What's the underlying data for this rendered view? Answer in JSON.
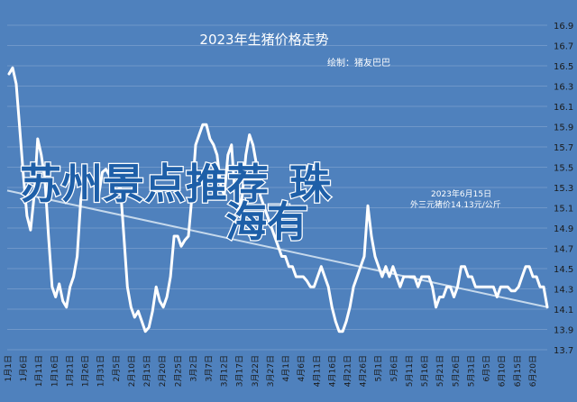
{
  "chart_data": {
    "type": "line",
    "title": "2023年生猪价格走势",
    "author": "绘制：猪友巴巴",
    "ylim": [
      13.7,
      16.9
    ],
    "yticks": [
      "13.7",
      "13.9",
      "14.1",
      "14.3",
      "14.5",
      "14.7",
      "14.9",
      "15.1",
      "15.3",
      "15.5",
      "15.7",
      "15.9",
      "16.1",
      "16.3",
      "16.5",
      "16.7",
      "16.9"
    ],
    "x_labels": [
      "1月1日",
      "1月6日",
      "1月11日",
      "1月16日",
      "1月21日",
      "1月26日",
      "1月31日",
      "2月5日",
      "2月10日",
      "2月15日",
      "2月20日",
      "2月25日",
      "3月2日",
      "3月7日",
      "3月12日",
      "3月17日",
      "3月22日",
      "3月27日",
      "4月1日",
      "4月6日",
      "4月11日",
      "4月16日",
      "4月21日",
      "4月26日",
      "5月1日",
      "5月6日",
      "5月11日",
      "5月16日",
      "5月21日",
      "5月26日",
      "5月31日",
      "6月5日",
      "6月10日",
      "6月15日",
      "6月20日"
    ],
    "grid": true,
    "series": [
      {
        "color": "#ffffff",
        "values": [
          16.42,
          16.48,
          16.32,
          15.88,
          15.42,
          15.02,
          14.88,
          15.22,
          15.78,
          15.62,
          15.38,
          14.82,
          14.32,
          14.22,
          14.35,
          14.18,
          14.12,
          14.32,
          14.42,
          14.62,
          15.18,
          15.38,
          15.42,
          15.38,
          15.32,
          15.22,
          15.45,
          15.48,
          15.42,
          15.32,
          15.22,
          15.32,
          14.82,
          14.32,
          14.12,
          14.02,
          14.08,
          13.98,
          13.88,
          13.92,
          14.08,
          14.32,
          14.18,
          14.12,
          14.22,
          14.42,
          14.82,
          14.82,
          14.72,
          14.78,
          14.82,
          15.22,
          15.72,
          15.82,
          15.92,
          15.92,
          15.78,
          15.72,
          15.62,
          15.32,
          15.22,
          15.62,
          15.72,
          15.22,
          15.02,
          15.22,
          15.62,
          15.82,
          15.72,
          15.52,
          15.22,
          15.12,
          15.02,
          14.92,
          14.82,
          14.72,
          14.62,
          14.62,
          14.52,
          14.52,
          14.42,
          14.42,
          14.42,
          14.38,
          14.32,
          14.32,
          14.42,
          14.52,
          14.42,
          14.32,
          14.12,
          13.98,
          13.88,
          13.88,
          13.98,
          14.12,
          14.32,
          14.42,
          14.52,
          14.62,
          15.12,
          14.82,
          14.62,
          14.52,
          14.42,
          14.52,
          14.42,
          14.52,
          14.42,
          14.32,
          14.42,
          14.42,
          14.42,
          14.42,
          14.32,
          14.42,
          14.42,
          14.42,
          14.32,
          14.12,
          14.22,
          14.22,
          14.32,
          14.32,
          14.22,
          14.32,
          14.52,
          14.52,
          14.42,
          14.42,
          14.32,
          14.32,
          14.32,
          14.32,
          14.32,
          14.32,
          14.22,
          14.32,
          14.32,
          14.32,
          14.28,
          14.28,
          14.32,
          14.42,
          14.52,
          14.52,
          14.42,
          14.42,
          14.32,
          14.32,
          14.12
        ]
      },
      {
        "color": "#c6d9ec",
        "values": [
          15.27,
          14.12
        ]
      }
    ]
  },
  "annotation": {
    "line1": "2023年6月15日",
    "line2": "外三元猪价14.13元/公斤"
  },
  "overlay": {
    "line1": "苏州景点推荐_珠",
    "line2": "海有"
  }
}
